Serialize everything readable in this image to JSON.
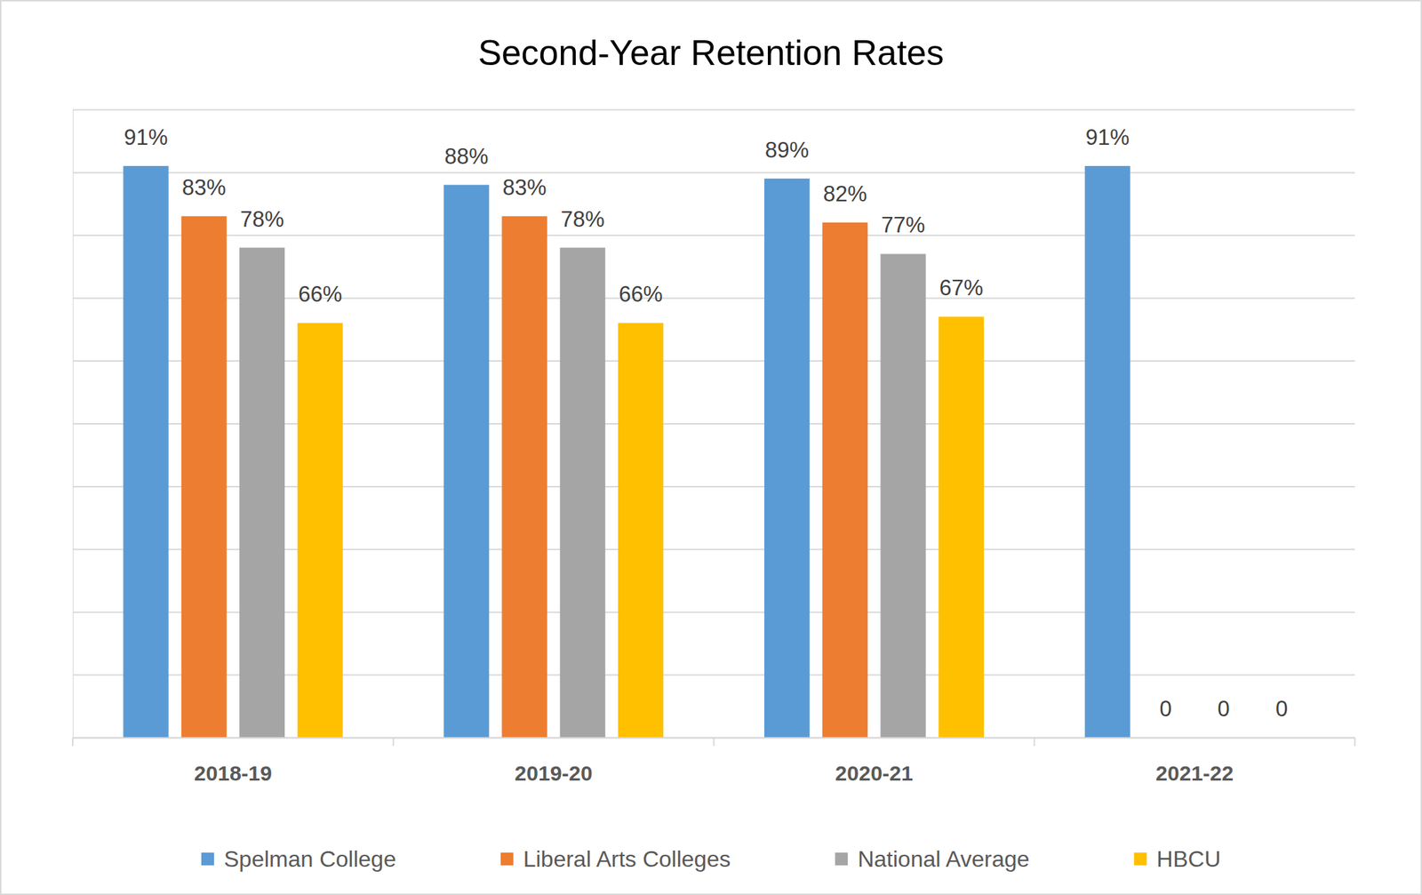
{
  "chart_data": {
    "type": "bar",
    "title": "Second-Year Retention Rates",
    "categories": [
      "2018-19",
      "2019-20",
      "2020-21",
      "2021-22"
    ],
    "series": [
      {
        "name": "Spelman College",
        "color": "#5b9bd5",
        "values": [
          91,
          88,
          89,
          91
        ],
        "value_labels": [
          "91%",
          "88%",
          "89%",
          "91%"
        ]
      },
      {
        "name": "Liberal Arts Colleges",
        "color": "#ed7d31",
        "values": [
          83,
          83,
          82,
          0
        ],
        "value_labels": [
          "83%",
          "83%",
          "82%",
          "0"
        ]
      },
      {
        "name": "National Average",
        "color": "#a5a5a5",
        "values": [
          78,
          78,
          77,
          0
        ],
        "value_labels": [
          "78%",
          "78%",
          "77%",
          "0"
        ]
      },
      {
        "name": "HBCU",
        "color": "#ffc000",
        "values": [
          66,
          66,
          67,
          0
        ],
        "value_labels": [
          "66%",
          "66%",
          "67%",
          "0"
        ]
      }
    ],
    "ylim": [
      0,
      100
    ],
    "yticks": [
      0,
      10,
      20,
      30,
      40,
      50,
      60,
      70,
      80,
      90,
      100
    ],
    "grid": true,
    "legend": "bottom",
    "data_labels": true,
    "tick_labels": "x"
  }
}
